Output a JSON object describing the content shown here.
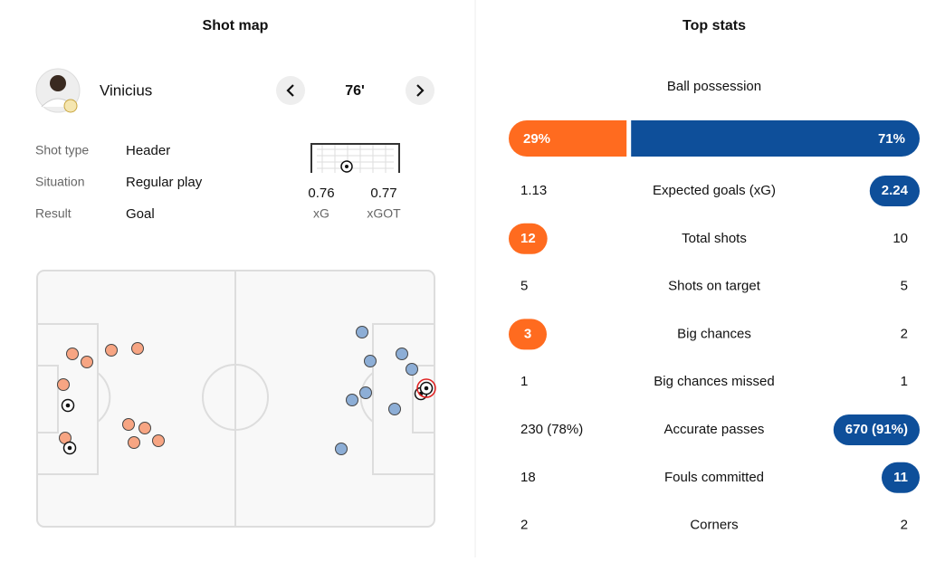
{
  "shot_map": {
    "title": "Shot map",
    "player": "Vinicius",
    "minute": "76'",
    "details": [
      {
        "label": "Shot type",
        "value": "Header"
      },
      {
        "label": "Situation",
        "value": "Regular play"
      },
      {
        "label": "Result",
        "value": "Goal"
      }
    ],
    "metrics": [
      {
        "value": "0.76",
        "label": "xG"
      },
      {
        "value": "0.77",
        "label": "xGOT"
      }
    ]
  },
  "top_stats": {
    "title": "Top stats",
    "possession": {
      "label": "Ball possession",
      "values": [
        29,
        71
      ],
      "value_labels": [
        "29%",
        "71%"
      ]
    },
    "rows": [
      {
        "name": "Expected goals (xG)",
        "home": "1.13",
        "away": "2.24",
        "highlight": "away"
      },
      {
        "name": "Total shots",
        "home": "12",
        "away": "10",
        "highlight": "home"
      },
      {
        "name": "Shots on target",
        "home": "5",
        "away": "5",
        "highlight": null
      },
      {
        "name": "Big chances",
        "home": "3",
        "away": "2",
        "highlight": "home"
      },
      {
        "name": "Big chances missed",
        "home": "1",
        "away": "1",
        "highlight": null
      },
      {
        "name": "Accurate passes",
        "home": "230 (78%)",
        "away": "670 (91%)",
        "highlight": "away"
      },
      {
        "name": "Fouls committed",
        "home": "18",
        "away": "11",
        "highlight": "away"
      },
      {
        "name": "Corners",
        "home": "2",
        "away": "2",
        "highlight": null
      }
    ]
  }
}
